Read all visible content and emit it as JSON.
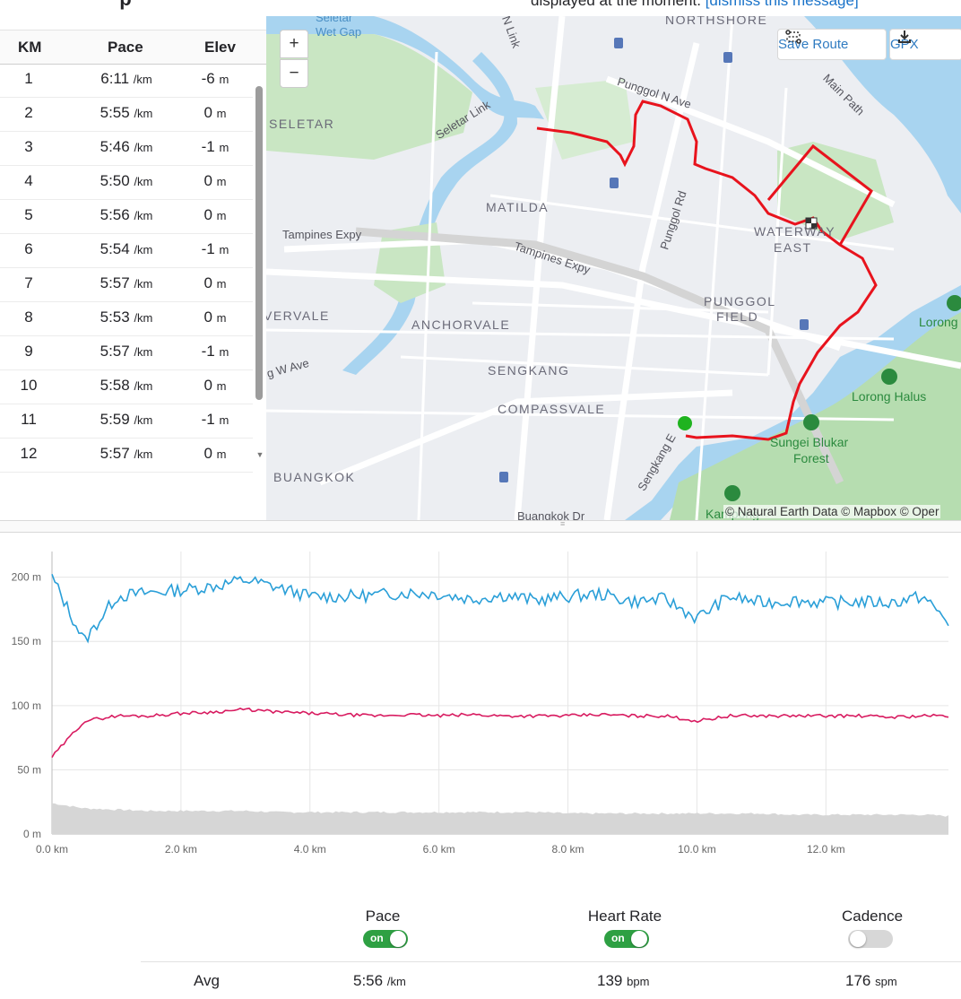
{
  "splits": {
    "title": "p",
    "columns": [
      "KM",
      "Pace",
      "Elev"
    ],
    "rows": [
      {
        "km": "1",
        "pace": "6:11",
        "pace_unit": "/km",
        "elev": "-6",
        "elev_unit": "m"
      },
      {
        "km": "2",
        "pace": "5:55",
        "pace_unit": "/km",
        "elev": "0",
        "elev_unit": "m"
      },
      {
        "km": "3",
        "pace": "5:46",
        "pace_unit": "/km",
        "elev": "-1",
        "elev_unit": "m"
      },
      {
        "km": "4",
        "pace": "5:50",
        "pace_unit": "/km",
        "elev": "0",
        "elev_unit": "m"
      },
      {
        "km": "5",
        "pace": "5:56",
        "pace_unit": "/km",
        "elev": "0",
        "elev_unit": "m"
      },
      {
        "km": "6",
        "pace": "5:54",
        "pace_unit": "/km",
        "elev": "-1",
        "elev_unit": "m"
      },
      {
        "km": "7",
        "pace": "5:57",
        "pace_unit": "/km",
        "elev": "0",
        "elev_unit": "m"
      },
      {
        "km": "8",
        "pace": "5:53",
        "pace_unit": "/km",
        "elev": "0",
        "elev_unit": "m"
      },
      {
        "km": "9",
        "pace": "5:57",
        "pace_unit": "/km",
        "elev": "-1",
        "elev_unit": "m"
      },
      {
        "km": "10",
        "pace": "5:58",
        "pace_unit": "/km",
        "elev": "0",
        "elev_unit": "m"
      },
      {
        "km": "11",
        "pace": "5:59",
        "pace_unit": "/km",
        "elev": "-1",
        "elev_unit": "m"
      },
      {
        "km": "12",
        "pace": "5:57",
        "pace_unit": "/km",
        "elev": "0",
        "elev_unit": "m"
      }
    ]
  },
  "banner": {
    "text": "displayed at the moment.",
    "link": "[dismiss this message]"
  },
  "map": {
    "zoom_in": "+",
    "zoom_out": "−",
    "save_route": "Save Route",
    "gpx": "GPX",
    "attribution": "© Natural Earth Data © Mapbox © Oper",
    "areas": [
      "NORTHSHORE",
      "SELETAR",
      "MATILDA",
      "WATERWAY",
      "EAST",
      "PUNGGOL",
      "FIELD",
      "RIVERVALE",
      "ANCHORVALE",
      "SENGKANG",
      "COMPASSVALE",
      "BUANGKOK"
    ],
    "roads": [
      "Seletar Link",
      "N Link",
      "Punggol N Ave",
      "Main Path",
      "Tampines Expy",
      "Tampines Expy",
      "Punggol Rd",
      "Sengkang E",
      "g W Ave",
      "Buangkok Dr",
      "Wet Gap",
      "Seletar"
    ],
    "parks": [
      "Lorong Halus",
      "Sungei Blukar",
      "Forest",
      "Lorong",
      "Kampong"
    ],
    "route_color": "#e8131d",
    "start_color": "#1fb31f"
  },
  "chart_data": {
    "type": "line",
    "x": [
      0,
      0.5,
      1,
      1.5,
      2,
      2.5,
      3,
      3.5,
      4,
      4.5,
      5,
      5.5,
      6,
      6.5,
      7,
      7.5,
      8,
      8.5,
      9,
      9.5,
      10,
      10.5,
      11,
      11.5,
      12,
      12.5,
      13,
      13.5,
      13.9
    ],
    "xlabel": "",
    "ylabel": "",
    "x_ticks": [
      "0.0 km",
      "2.0 km",
      "4.0 km",
      "6.0 km",
      "8.0 km",
      "10.0 km",
      "12.0 km"
    ],
    "y_ticks": [
      "0 m",
      "50 m",
      "100 m",
      "150 m",
      "200 m"
    ],
    "xlim": [
      0,
      13.9
    ],
    "ylim": [
      0,
      220
    ],
    "grid": true,
    "series": [
      {
        "color": "#2a9fd8",
        "values": [
          200,
          150,
          185,
          188,
          190,
          193,
          198,
          192,
          185,
          185,
          186,
          188,
          187,
          183,
          186,
          182,
          185,
          187,
          181,
          183,
          168,
          185,
          180,
          182,
          180,
          181,
          180,
          185,
          165
        ]
      },
      {
        "color": "#d81b60",
        "values": [
          60,
          88,
          92,
          92,
          94,
          95,
          97,
          95,
          94,
          93,
          92,
          93,
          92,
          93,
          92,
          92,
          92,
          93,
          92,
          92,
          88,
          92,
          92,
          92,
          92,
          92,
          91,
          92,
          92
        ]
      },
      {
        "color": "#d6d6d6",
        "values": [
          24,
          20,
          19,
          18,
          18,
          18,
          18,
          17,
          17,
          17,
          17,
          17,
          17,
          17,
          17,
          17,
          16,
          16,
          16,
          16,
          16,
          16,
          16,
          15,
          15,
          15,
          15,
          15,
          14
        ]
      }
    ]
  },
  "stats": {
    "pace_label": "Pace",
    "pace_toggle": "on",
    "hr_label": "Heart Rate",
    "hr_toggle": "on",
    "cadence_label": "Cadence",
    "avg_label": "Avg",
    "avg_pace": "5:56",
    "avg_pace_unit": "/km",
    "avg_hr": "139",
    "avg_hr_unit": "bpm",
    "avg_cadence": "176",
    "avg_cadence_unit": "spm"
  }
}
